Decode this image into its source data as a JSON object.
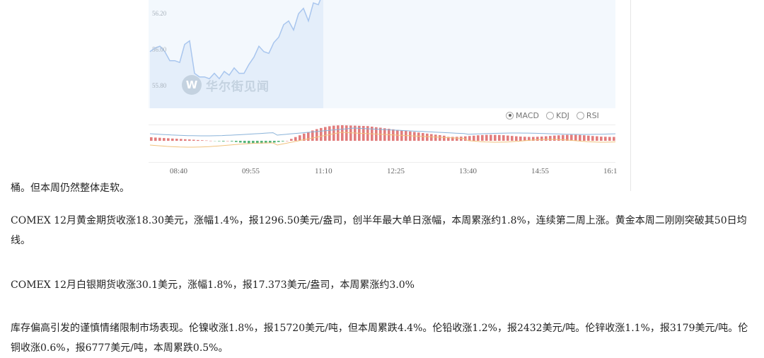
{
  "chart": {
    "y_labels": [
      "56.20",
      "56.00",
      "55.80"
    ],
    "watermark": "华尔街见闻",
    "watermark_logo": "W",
    "indicator_tabs": [
      {
        "label": "MACD",
        "selected": true
      },
      {
        "label": "KDJ",
        "selected": false
      },
      {
        "label": "RSI",
        "selected": false
      }
    ],
    "time_labels": [
      "08:40",
      "09:55",
      "11:10",
      "12:25",
      "13:40",
      "14:55",
      "16:1"
    ],
    "colors": {
      "price_line": "#a9c6ee",
      "price_fill": "#e4eefa",
      "up_bar": "#e27d7d",
      "down_bar": "#55b57a",
      "dif_line": "#8ab3d9",
      "dea_line": "#f1c27d"
    }
  },
  "chart_data": {
    "type": "line",
    "y_ticks": [
      56.2,
      56.0,
      55.8
    ],
    "x_ticks": [
      "08:40",
      "09:55",
      "11:10",
      "12:25",
      "13:40",
      "14:55",
      "16:1"
    ],
    "price_series": [
      56.0,
      56.02,
      56.03,
      56.0,
      55.95,
      55.95,
      55.94,
      56.04,
      56.06,
      55.88,
      55.86,
      55.86,
      55.85,
      55.88,
      55.85,
      55.89,
      55.87,
      55.91,
      55.88,
      55.88,
      55.93,
      55.97,
      56.03,
      56.0,
      55.99,
      56.05,
      56.08,
      56.15,
      56.17,
      56.12,
      56.21,
      56.24,
      56.17,
      56.27,
      56.26,
      56.33
    ]
  },
  "article": {
    "tail": "桶。但本周仍然整体走软。",
    "para1": "COMEX 12月黄金期货收涨18.30美元，涨幅1.4%，报1296.50美元/盎司，创半年最大单日涨幅，本周累涨约1.8%，连续第二周上涨。黄金本周二刚刚突破其50日均线。",
    "para2": "COMEX 12月白银期货收涨30.1美元，涨幅1.8%，报17.373美元/盎司，本周累涨约3.0%",
    "para3": "库存偏高引发的谨慎情绪限制市场表现。伦镍收涨1.8%，报15720美元/吨，但本周累跌4.4%。伦铅收涨1.2%，报2432美元/吨。伦锌收涨1.1%，报3179美元/吨。伦铜收涨0.6%，报6777美元/吨，本周累跌0.5%。"
  }
}
